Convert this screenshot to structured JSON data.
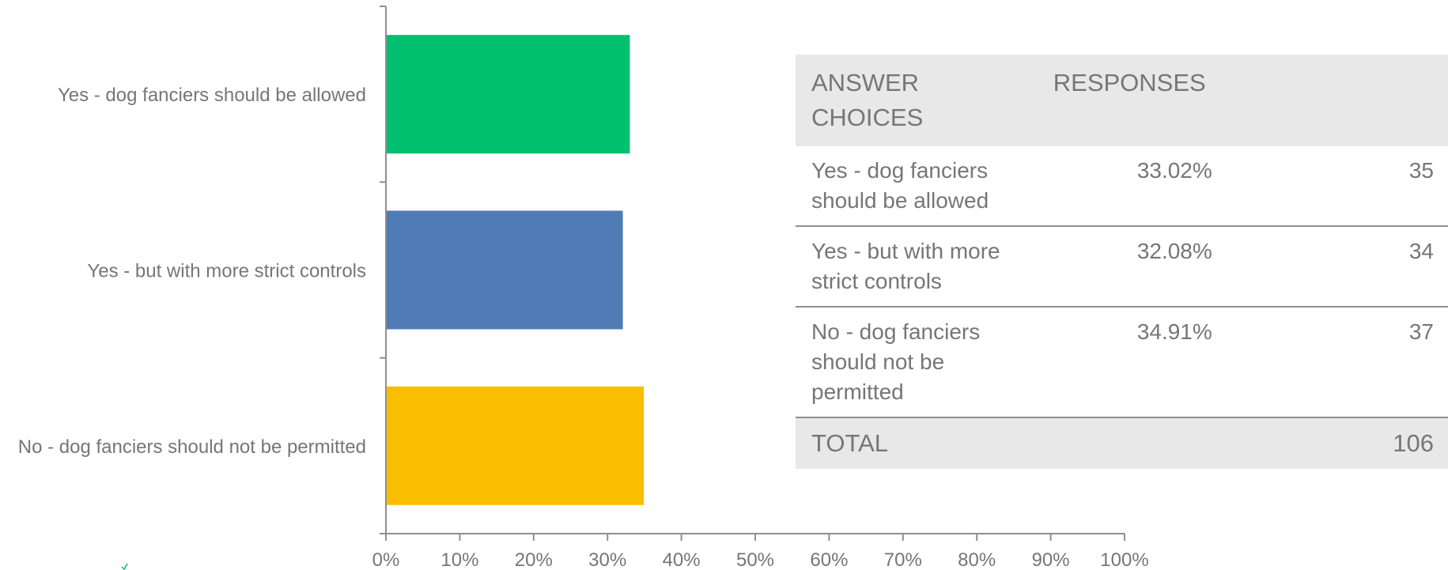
{
  "chart_data": {
    "type": "bar",
    "orientation": "horizontal",
    "categories": [
      "Yes - dog fanciers should be allowed",
      "Yes - but with more strict controls",
      "No - dog fanciers should not be permitted"
    ],
    "values": [
      33.02,
      32.08,
      34.91
    ],
    "colors": [
      "#00bf6f",
      "#507cb6",
      "#f9be00"
    ],
    "xlim": [
      0,
      100
    ],
    "x_ticks": [
      "0%",
      "10%",
      "20%",
      "30%",
      "40%",
      "50%",
      "60%",
      "70%",
      "80%",
      "90%",
      "100%"
    ],
    "grid": false
  },
  "table": {
    "headers": {
      "answer": "ANSWER CHOICES",
      "responses": "RESPONSES",
      "count": ""
    },
    "rows": [
      {
        "answer": "Yes - dog fanciers should be allowed",
        "percent": "33.02%",
        "count": "35"
      },
      {
        "answer": "Yes - but with more strict controls",
        "percent": "32.08%",
        "count": "34"
      },
      {
        "answer": "No - dog fanciers should not be permitted",
        "percent": "34.91%",
        "count": "37"
      }
    ],
    "total": {
      "label": "TOTAL",
      "count": "106"
    }
  }
}
